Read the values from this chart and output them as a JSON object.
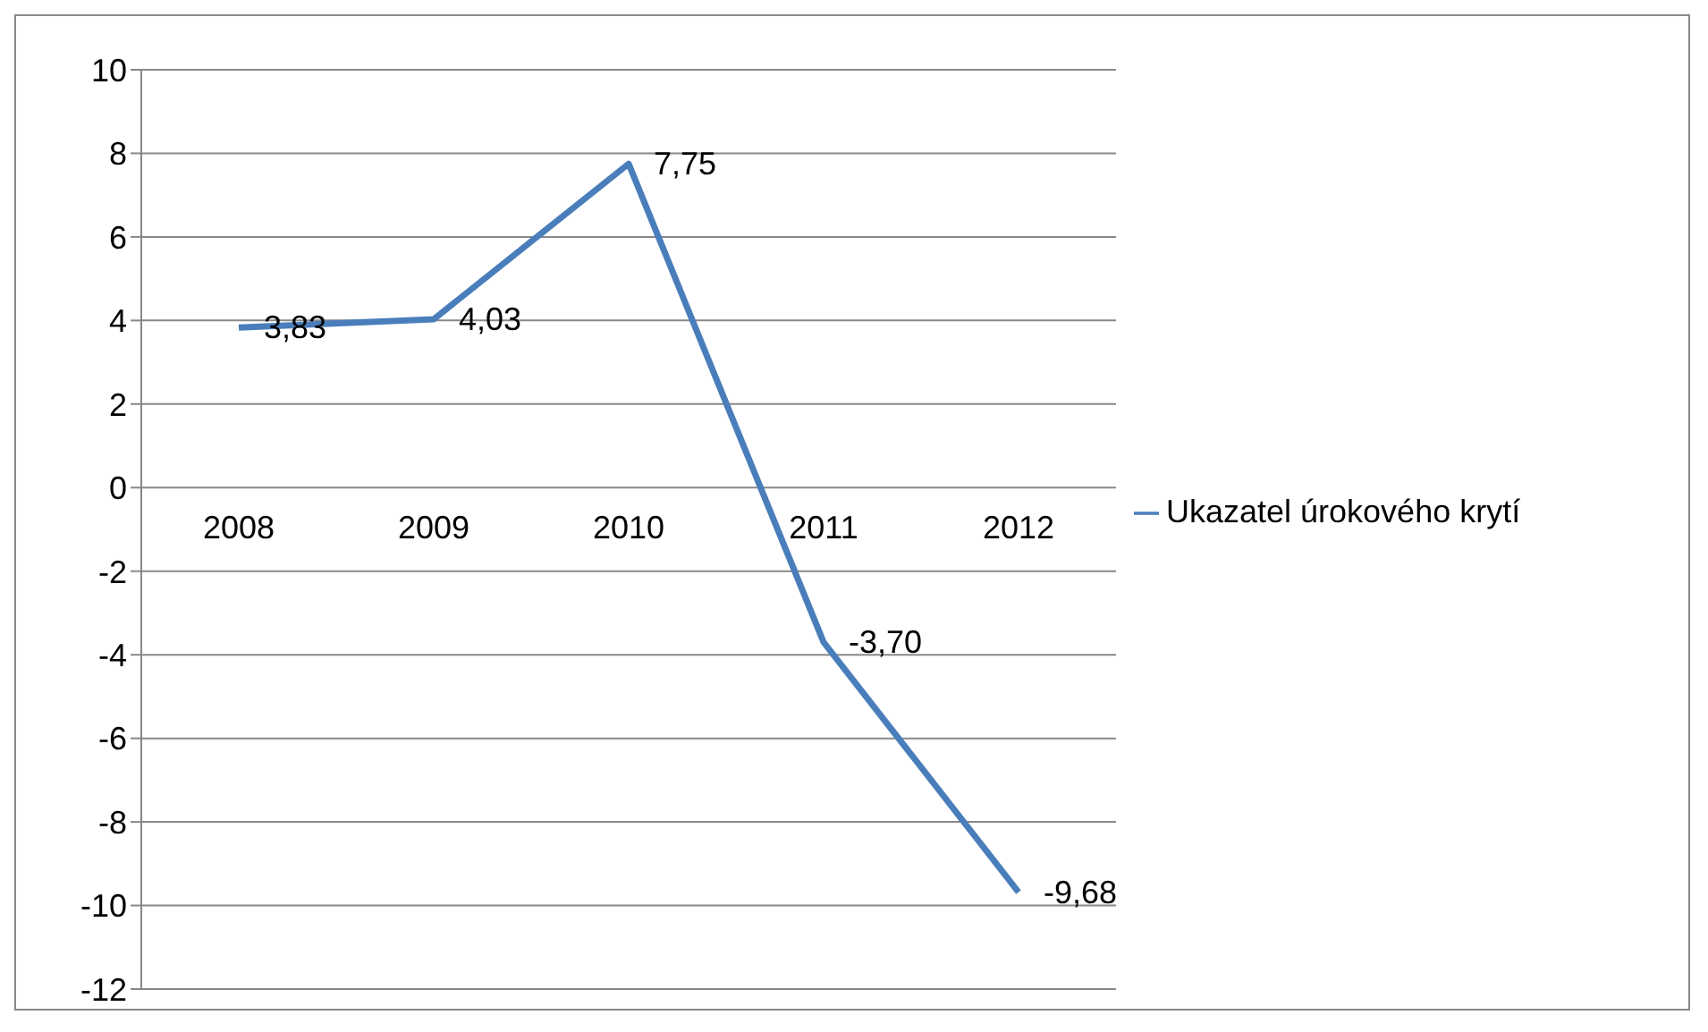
{
  "chart_data": {
    "type": "line",
    "categories": [
      "2008",
      "2009",
      "2010",
      "2011",
      "2012"
    ],
    "series": [
      {
        "name": "Ukazatel úrokového krytí",
        "color": "#4a7ebb",
        "values": [
          3.83,
          4.03,
          7.75,
          -3.7,
          -9.68
        ],
        "value_labels": [
          "3,83",
          "4,03",
          "7,75",
          "-3,70",
          "-9,68"
        ]
      }
    ],
    "ylim": [
      -12,
      10
    ],
    "yticks": [
      -12,
      -10,
      -8,
      -6,
      -4,
      -2,
      0,
      2,
      4,
      6,
      8,
      10
    ],
    "grid": "y",
    "legend": "right",
    "marker": "none",
    "line_style": "solid"
  }
}
